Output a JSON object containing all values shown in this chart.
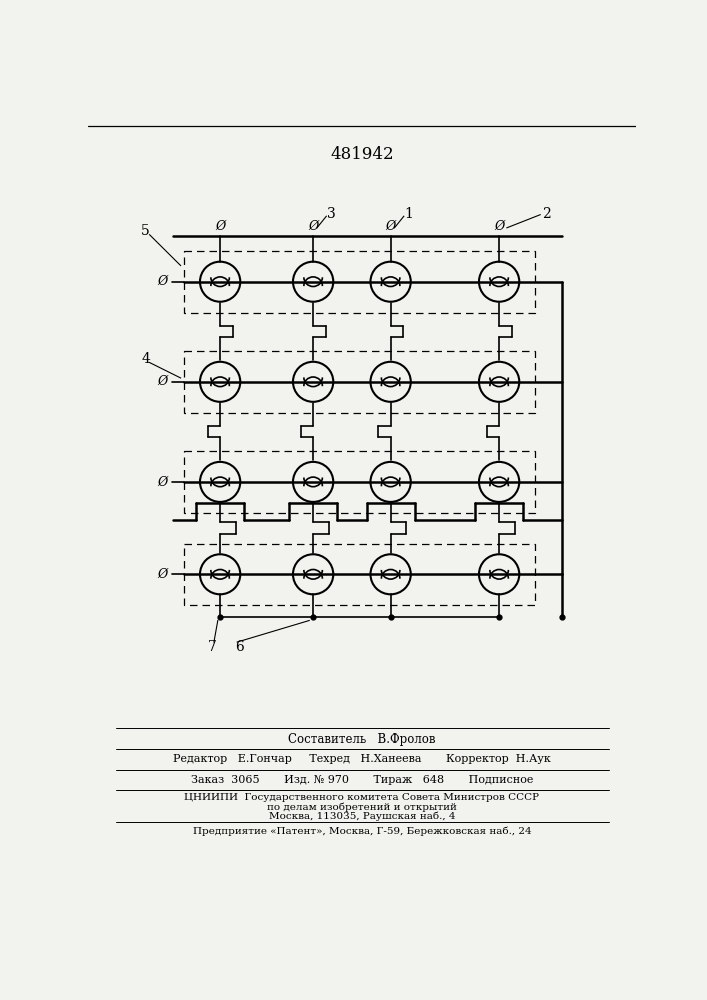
{
  "title": "481942",
  "background_color": "#f2f2ee",
  "fig_width": 7.07,
  "fig_height": 10.0,
  "phi": "Ø",
  "footer_lines": [
    "Составитель   В.Фролов",
    "Редактор   Е.Гончар     Техред   Н.Ханеева       Корректор  Н.Аук",
    "Заказ  3065       Изд. № 970       Тираж   648       Подписное",
    "ЦНИИПИ  Государственного комитета Совета Министров СССР",
    "по делам изобретений и открытий",
    "Москва, 113035, Раушская наб., 4",
    "Предприятие «Патент», Москва, Г-59, Бережковская наб., 24"
  ]
}
